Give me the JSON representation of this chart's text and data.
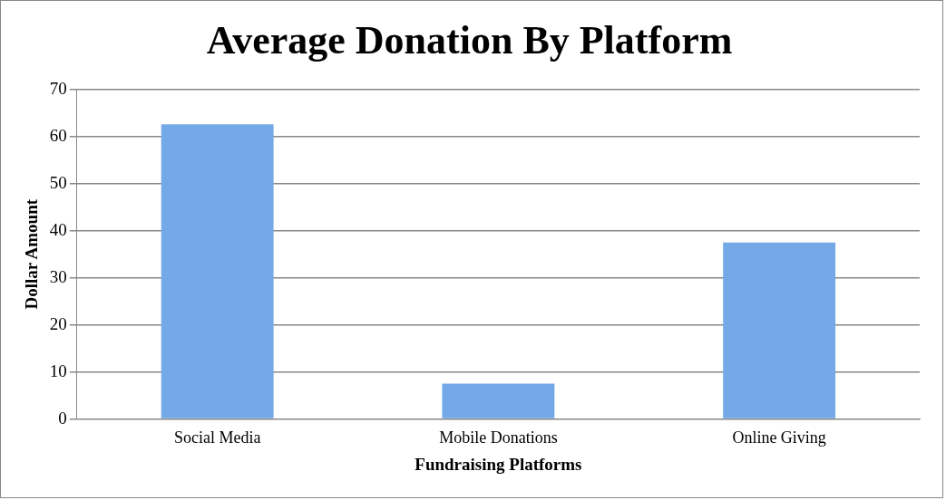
{
  "chart_data": {
    "type": "bar",
    "title": "Average Donation By Platform",
    "xlabel": "Fundraising Platforms",
    "ylabel": "Dollar Amount",
    "categories": [
      "Social Media",
      "Mobile Donations",
      "Online Giving"
    ],
    "values": [
      62.6,
      7.5,
      37.5
    ],
    "color": "#74a9e8",
    "ylim": [
      0,
      70
    ],
    "yticks": [
      0,
      10,
      20,
      30,
      40,
      50,
      60,
      70
    ],
    "grid": "y",
    "legend": false
  }
}
